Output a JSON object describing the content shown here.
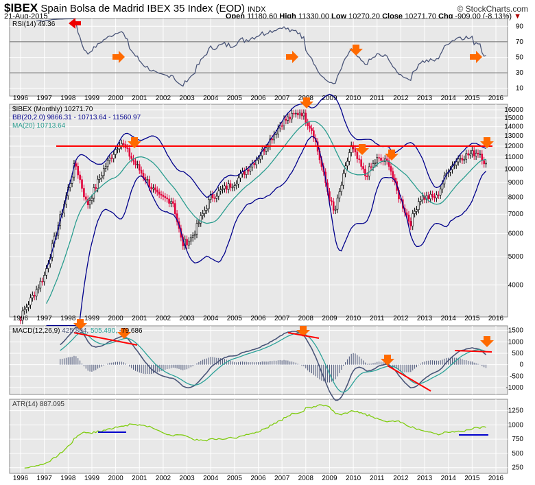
{
  "header": {
    "symbol": "$IBEX",
    "name": "Spain Bolsa de Madrid IBEX 35 Index (EOD)",
    "exchange": "INDX",
    "date": "21-Aug-2015",
    "watermark": "© StockCharts.com",
    "open_label": "Open",
    "open": "11180.60",
    "high_label": "High",
    "high": "11330.00",
    "low_label": "Low",
    "low": "10270.20",
    "close_label": "Close",
    "close": "10271.70",
    "chg_label": "Chg",
    "chg": "-909.00 (-8.13%)"
  },
  "legends": {
    "rsi": "RSI(14) 49.36",
    "price": "$IBEX (Monthly) 10271.70",
    "bb": "BB(20,2.0) 9866.31 - 10713.64 - 11560.97",
    "ma": "MA(20) 10713.64",
    "macd_name": "MACD(12,26,9)",
    "macd_v1": "425.804,",
    "macd_v2": "505.490,",
    "macd_v3": "-79.686",
    "atr": "ATR(14) 887.095"
  },
  "colors": {
    "price_up": "#000000",
    "price_down": "#e0003a",
    "bb": "#00008b",
    "ma": "#2a9d8f",
    "macd": "#4a5578",
    "signal": "#2aa198",
    "atr": "#7fcc10",
    "annotation": "#ff0000",
    "arrow": "#ff6a00"
  },
  "chart_data": {
    "type": "line",
    "years": [
      "1996",
      "1997",
      "1998",
      "1999",
      "2000",
      "2001",
      "2002",
      "2003",
      "2004",
      "2005",
      "2006",
      "2007",
      "2008",
      "2009",
      "2010",
      "2011",
      "2012",
      "2013",
      "2014",
      "2015",
      "2016"
    ],
    "price": {
      "scale": "log",
      "yticks": [
        4000,
        5000,
        6000,
        7000,
        8000,
        9000,
        10000,
        11000,
        12000,
        13000,
        14000,
        15000,
        16000
      ],
      "ylim": [
        3000,
        17000
      ],
      "keypoints": [
        [
          1996.0,
          3100
        ],
        [
          1997.0,
          4300
        ],
        [
          1998.3,
          10500
        ],
        [
          1998.8,
          7500
        ],
        [
          1999.5,
          10000
        ],
        [
          2000.2,
          12500
        ],
        [
          2000.8,
          10500
        ],
        [
          2001.8,
          8000
        ],
        [
          2002.4,
          7800
        ],
        [
          2002.8,
          5500
        ],
        [
          2003.2,
          5800
        ],
        [
          2004.0,
          8000
        ],
        [
          2005.0,
          9000
        ],
        [
          2006.0,
          11000
        ],
        [
          2007.0,
          14500
        ],
        [
          2007.8,
          15800
        ],
        [
          2008.3,
          13500
        ],
        [
          2008.9,
          8500
        ],
        [
          2009.2,
          7000
        ],
        [
          2009.9,
          12000
        ],
        [
          2010.5,
          9500
        ],
        [
          2011.0,
          10800
        ],
        [
          2011.5,
          10500
        ],
        [
          2011.8,
          8500
        ],
        [
          2012.4,
          6500
        ],
        [
          2012.8,
          8000
        ],
        [
          2013.5,
          8000
        ],
        [
          2014.0,
          10000
        ],
        [
          2014.5,
          11000
        ],
        [
          2015.3,
          11500
        ],
        [
          2015.6,
          10271.7
        ]
      ],
      "resistance": 12000
    },
    "rsi": {
      "yticks": [
        10,
        30,
        50,
        70,
        90
      ],
      "ylim": [
        0,
        100
      ],
      "levels": [
        30,
        70
      ]
    },
    "macd": {
      "yticks": [
        -1000,
        -500,
        0,
        500,
        1000,
        1500
      ],
      "ylim": [
        -1300,
        1700
      ]
    },
    "atr": {
      "yticks": [
        250,
        500,
        750,
        1000,
        1250
      ],
      "ylim": [
        150,
        1450
      ]
    }
  }
}
